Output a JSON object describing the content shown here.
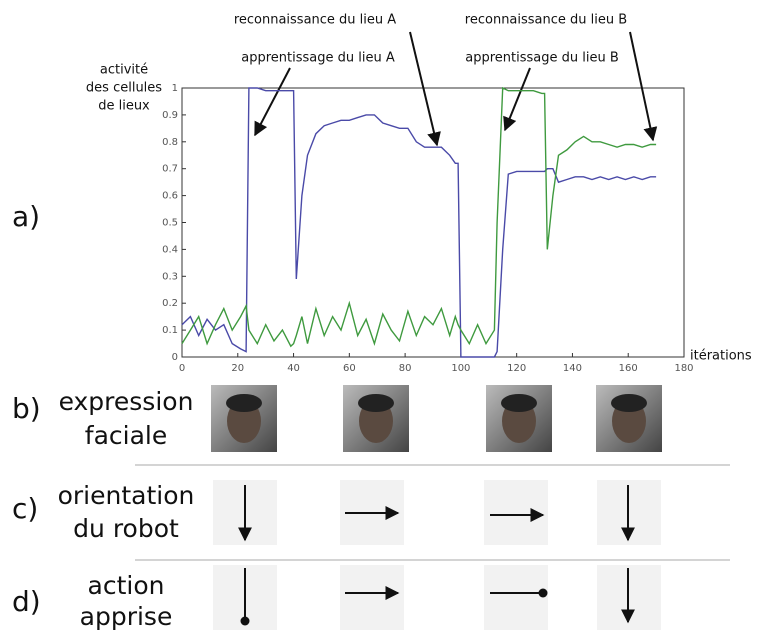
{
  "chart_data": {
    "type": "line",
    "y_label": [
      "activité",
      "des cellules",
      "de lieux"
    ],
    "x_label": "itérations",
    "annotations": [
      "reconnaissance du lieu A",
      "apprentissage du lieu A",
      "reconnaissance du lieu B",
      "apprentissage du lieu B"
    ],
    "xlim": [
      0,
      180
    ],
    "xticks": [
      0,
      20,
      40,
      60,
      80,
      100,
      120,
      140,
      160,
      180
    ],
    "ylim": [
      0,
      1
    ],
    "yticks": [
      0,
      0.1,
      0.2,
      0.3,
      0.4,
      0.5,
      0.6,
      0.7,
      0.8,
      0.9,
      1
    ],
    "x": [
      0,
      3,
      6,
      9,
      12,
      15,
      18,
      21,
      23,
      24,
      27,
      30,
      33,
      36,
      39,
      40,
      41,
      43,
      45,
      48,
      51,
      54,
      57,
      60,
      63,
      66,
      69,
      72,
      75,
      78,
      81,
      84,
      87,
      90,
      93,
      96,
      98,
      99,
      100,
      103,
      106,
      109,
      112,
      113,
      115,
      117,
      120,
      123,
      126,
      129,
      130,
      131,
      133,
      135,
      138,
      141,
      144,
      147,
      150,
      153,
      156,
      159,
      162,
      165,
      168,
      170
    ],
    "series": [
      {
        "color": "#4a4aa8",
        "values": [
          0.12,
          0.15,
          0.08,
          0.14,
          0.1,
          0.12,
          0.05,
          0.03,
          0.02,
          1,
          1,
          0.99,
          0.99,
          0.99,
          0.99,
          0.99,
          0.29,
          0.6,
          0.75,
          0.83,
          0.86,
          0.87,
          0.88,
          0.88,
          0.89,
          0.9,
          0.9,
          0.87,
          0.86,
          0.85,
          0.85,
          0.8,
          0.78,
          0.78,
          0.78,
          0.75,
          0.72,
          0.72,
          0,
          0,
          0,
          0,
          0,
          0.02,
          0.4,
          0.68,
          0.69,
          0.69,
          0.69,
          0.69,
          0.69,
          0.7,
          0.7,
          0.65,
          0.66,
          0.67,
          0.67,
          0.66,
          0.67,
          0.66,
          0.67,
          0.66,
          0.67,
          0.66,
          0.67,
          0.67
        ]
      },
      {
        "color": "#3f9a3f",
        "values": [
          0.05,
          0.1,
          0.15,
          0.05,
          0.12,
          0.18,
          0.1,
          0.15,
          0.19,
          0.1,
          0.05,
          0.12,
          0.06,
          0.1,
          0.04,
          0.05,
          0.08,
          0.15,
          0.05,
          0.18,
          0.08,
          0.15,
          0.1,
          0.2,
          0.08,
          0.14,
          0.05,
          0.16,
          0.1,
          0.06,
          0.17,
          0.08,
          0.15,
          0.12,
          0.18,
          0.08,
          0.15,
          0.12,
          0.1,
          0.05,
          0.12,
          0.05,
          0.1,
          0.5,
          1,
          0.99,
          0.99,
          0.99,
          0.99,
          0.98,
          0.98,
          0.4,
          0.6,
          0.75,
          0.77,
          0.8,
          0.82,
          0.8,
          0.8,
          0.79,
          0.78,
          0.79,
          0.79,
          0.78,
          0.79,
          0.79
        ]
      }
    ]
  },
  "panels": {
    "a": "a)",
    "b": "b)",
    "c": "c)",
    "d": "d)"
  },
  "rows": {
    "b": [
      "expression",
      "faciale"
    ],
    "c": [
      "orientation",
      "du robot"
    ],
    "d": [
      "action",
      "apprise"
    ]
  }
}
